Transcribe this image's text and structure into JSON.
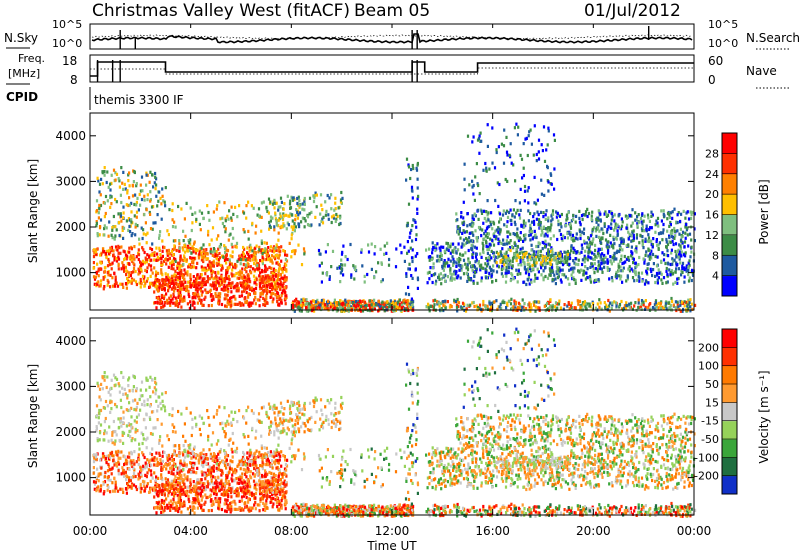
{
  "header": {
    "title": "Christmas Valley West (fitACF)",
    "beam": "Beam 05",
    "date": "01/Jul/2012"
  },
  "chart_data": [
    {
      "type": "line",
      "panel": "noise",
      "left_label": "N.Sky",
      "right_label": "N.Search",
      "left_ticks": [
        "10^5",
        "10^0"
      ],
      "right_ticks": [
        "10^5",
        "10^0"
      ]
    },
    {
      "type": "line",
      "panel": "frequency",
      "left_label_1": "Freq.",
      "left_label_2": "[MHz]",
      "right_label": "Nave",
      "left_ticks": [
        "18",
        "8"
      ],
      "right_ticks": [
        "60",
        "0"
      ]
    },
    {
      "type": "table",
      "panel": "cpid",
      "label": "CPID",
      "value": "themis 3300 IF"
    },
    {
      "type": "heatmap",
      "panel": "power",
      "ylabel": "Slant Range [km]",
      "yticks": [
        "4000",
        "3000",
        "2000",
        "1000"
      ],
      "ylim": [
        180,
        4500
      ],
      "colorbar_label": "Power [dB]",
      "colorbar_ticks": [
        "28",
        "24",
        "20",
        "16",
        "12",
        "8",
        "4"
      ]
    },
    {
      "type": "heatmap",
      "panel": "velocity",
      "ylabel": "Slant Range [km]",
      "yticks": [
        "4000",
        "3000",
        "2000",
        "1000"
      ],
      "ylim": [
        180,
        4500
      ],
      "colorbar_label": "Velocity [m s⁻¹]",
      "colorbar_ticks": [
        "200",
        "100",
        "50",
        "15",
        "-15",
        "-50",
        "-100",
        "-200"
      ]
    }
  ],
  "xaxis": {
    "ticks": [
      "00:00",
      "04:00",
      "08:00",
      "12:00",
      "16:00",
      "20:00",
      "00:00"
    ],
    "xlabel": "Time UT",
    "range_hours": [
      0,
      24
    ]
  },
  "colors": {
    "power_scale": [
      "#0000ff",
      "#1e5aa0",
      "#3c8c46",
      "#7fbf7f",
      "#ffbf00",
      "#ff8000",
      "#ff3000",
      "#ff0000"
    ],
    "velocity_scale": [
      "#1030c8",
      "#1f6f40",
      "#3aa63a",
      "#96d25a",
      "#c8c8c8",
      "#ff9a30",
      "#ff7a00",
      "#ff3000",
      "#ff0000"
    ]
  }
}
